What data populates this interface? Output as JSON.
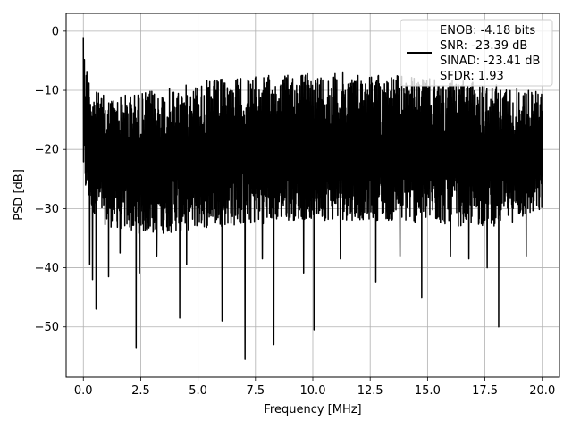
{
  "chart_data": {
    "type": "line",
    "title": "",
    "xlabel": "Frequency [MHz]",
    "ylabel": "PSD [dB]",
    "xlim": [
      -0.75,
      20.75
    ],
    "ylim": [
      -58.5,
      3.0
    ],
    "xticks": [
      0.0,
      2.5,
      5.0,
      7.5,
      10.0,
      12.5,
      15.0,
      17.5,
      20.0
    ],
    "xtick_labels": [
      "0.0",
      "2.5",
      "5.0",
      "7.5",
      "10.0",
      "12.5",
      "15.0",
      "17.5",
      "20.0"
    ],
    "yticks": [
      0,
      -10,
      -20,
      -30,
      -40,
      -50
    ],
    "ytick_labels": [
      "0",
      "−10",
      "−20",
      "−30",
      "−40",
      "−50"
    ],
    "grid": true,
    "legend_position": "top-right",
    "series": [
      {
        "name": "",
        "color": "#000000",
        "x_start": 0.0,
        "x_end": 20.0,
        "envelope": {
          "x": [
            0.0,
            0.02,
            0.1,
            0.3,
            0.5,
            1.0,
            2.0,
            3.0,
            4.0,
            5.0,
            6.0,
            7.0,
            8.0,
            9.0,
            10.0,
            11.0,
            12.0,
            13.0,
            14.0,
            15.0,
            16.0,
            17.0,
            18.0,
            19.0,
            20.0
          ],
          "upper": [
            -1.0,
            -2.0,
            -5.0,
            -8.0,
            -10.0,
            -11.0,
            -10.5,
            -10.0,
            -9.5,
            -8.5,
            -8.0,
            -7.8,
            -7.5,
            -7.2,
            -7.0,
            -7.0,
            -7.0,
            -7.2,
            -7.5,
            -8.0,
            -8.3,
            -8.5,
            -9.0,
            -9.5,
            -10.0
          ],
          "lower": [
            -25.0,
            -26.0,
            -28.0,
            -30.0,
            -31.0,
            -33.0,
            -34.0,
            -34.5,
            -34.0,
            -33.5,
            -33.0,
            -33.0,
            -32.5,
            -32.0,
            -32.0,
            -32.0,
            -32.0,
            -32.0,
            -32.5,
            -32.5,
            -33.0,
            -33.0,
            -33.0,
            -32.0,
            -31.0
          ]
        },
        "dips": [
          {
            "x": 0.28,
            "y": -39.5
          },
          {
            "x": 0.4,
            "y": -42.0
          },
          {
            "x": 0.55,
            "y": -47.0
          },
          {
            "x": 1.1,
            "y": -41.5
          },
          {
            "x": 1.6,
            "y": -37.5
          },
          {
            "x": 2.3,
            "y": -53.5
          },
          {
            "x": 2.45,
            "y": -41.0
          },
          {
            "x": 3.2,
            "y": -38.0
          },
          {
            "x": 4.2,
            "y": -48.5
          },
          {
            "x": 4.5,
            "y": -39.5
          },
          {
            "x": 6.05,
            "y": -49.0
          },
          {
            "x": 7.05,
            "y": -55.5
          },
          {
            "x": 7.8,
            "y": -38.5
          },
          {
            "x": 8.3,
            "y": -53.0
          },
          {
            "x": 9.6,
            "y": -41.0
          },
          {
            "x": 10.05,
            "y": -50.5
          },
          {
            "x": 11.2,
            "y": -38.5
          },
          {
            "x": 12.75,
            "y": -42.5
          },
          {
            "x": 13.8,
            "y": -38.0
          },
          {
            "x": 14.75,
            "y": -45.0
          },
          {
            "x": 16.0,
            "y": -38.0
          },
          {
            "x": 16.8,
            "y": -38.5
          },
          {
            "x": 17.6,
            "y": -40.0
          },
          {
            "x": 18.1,
            "y": -50.0
          },
          {
            "x": 19.3,
            "y": -38.0
          }
        ]
      }
    ],
    "legend": {
      "lines": [
        "ENOB: -4.18 bits",
        "SNR: -23.39 dB",
        "SINAD: -23.41 dB",
        "SFDR: 1.93"
      ]
    }
  },
  "colors": {
    "line": "#000000",
    "grid": "#b0b0b0",
    "axes": "#000000",
    "legend_border": "#cccccc",
    "background": "#ffffff"
  }
}
